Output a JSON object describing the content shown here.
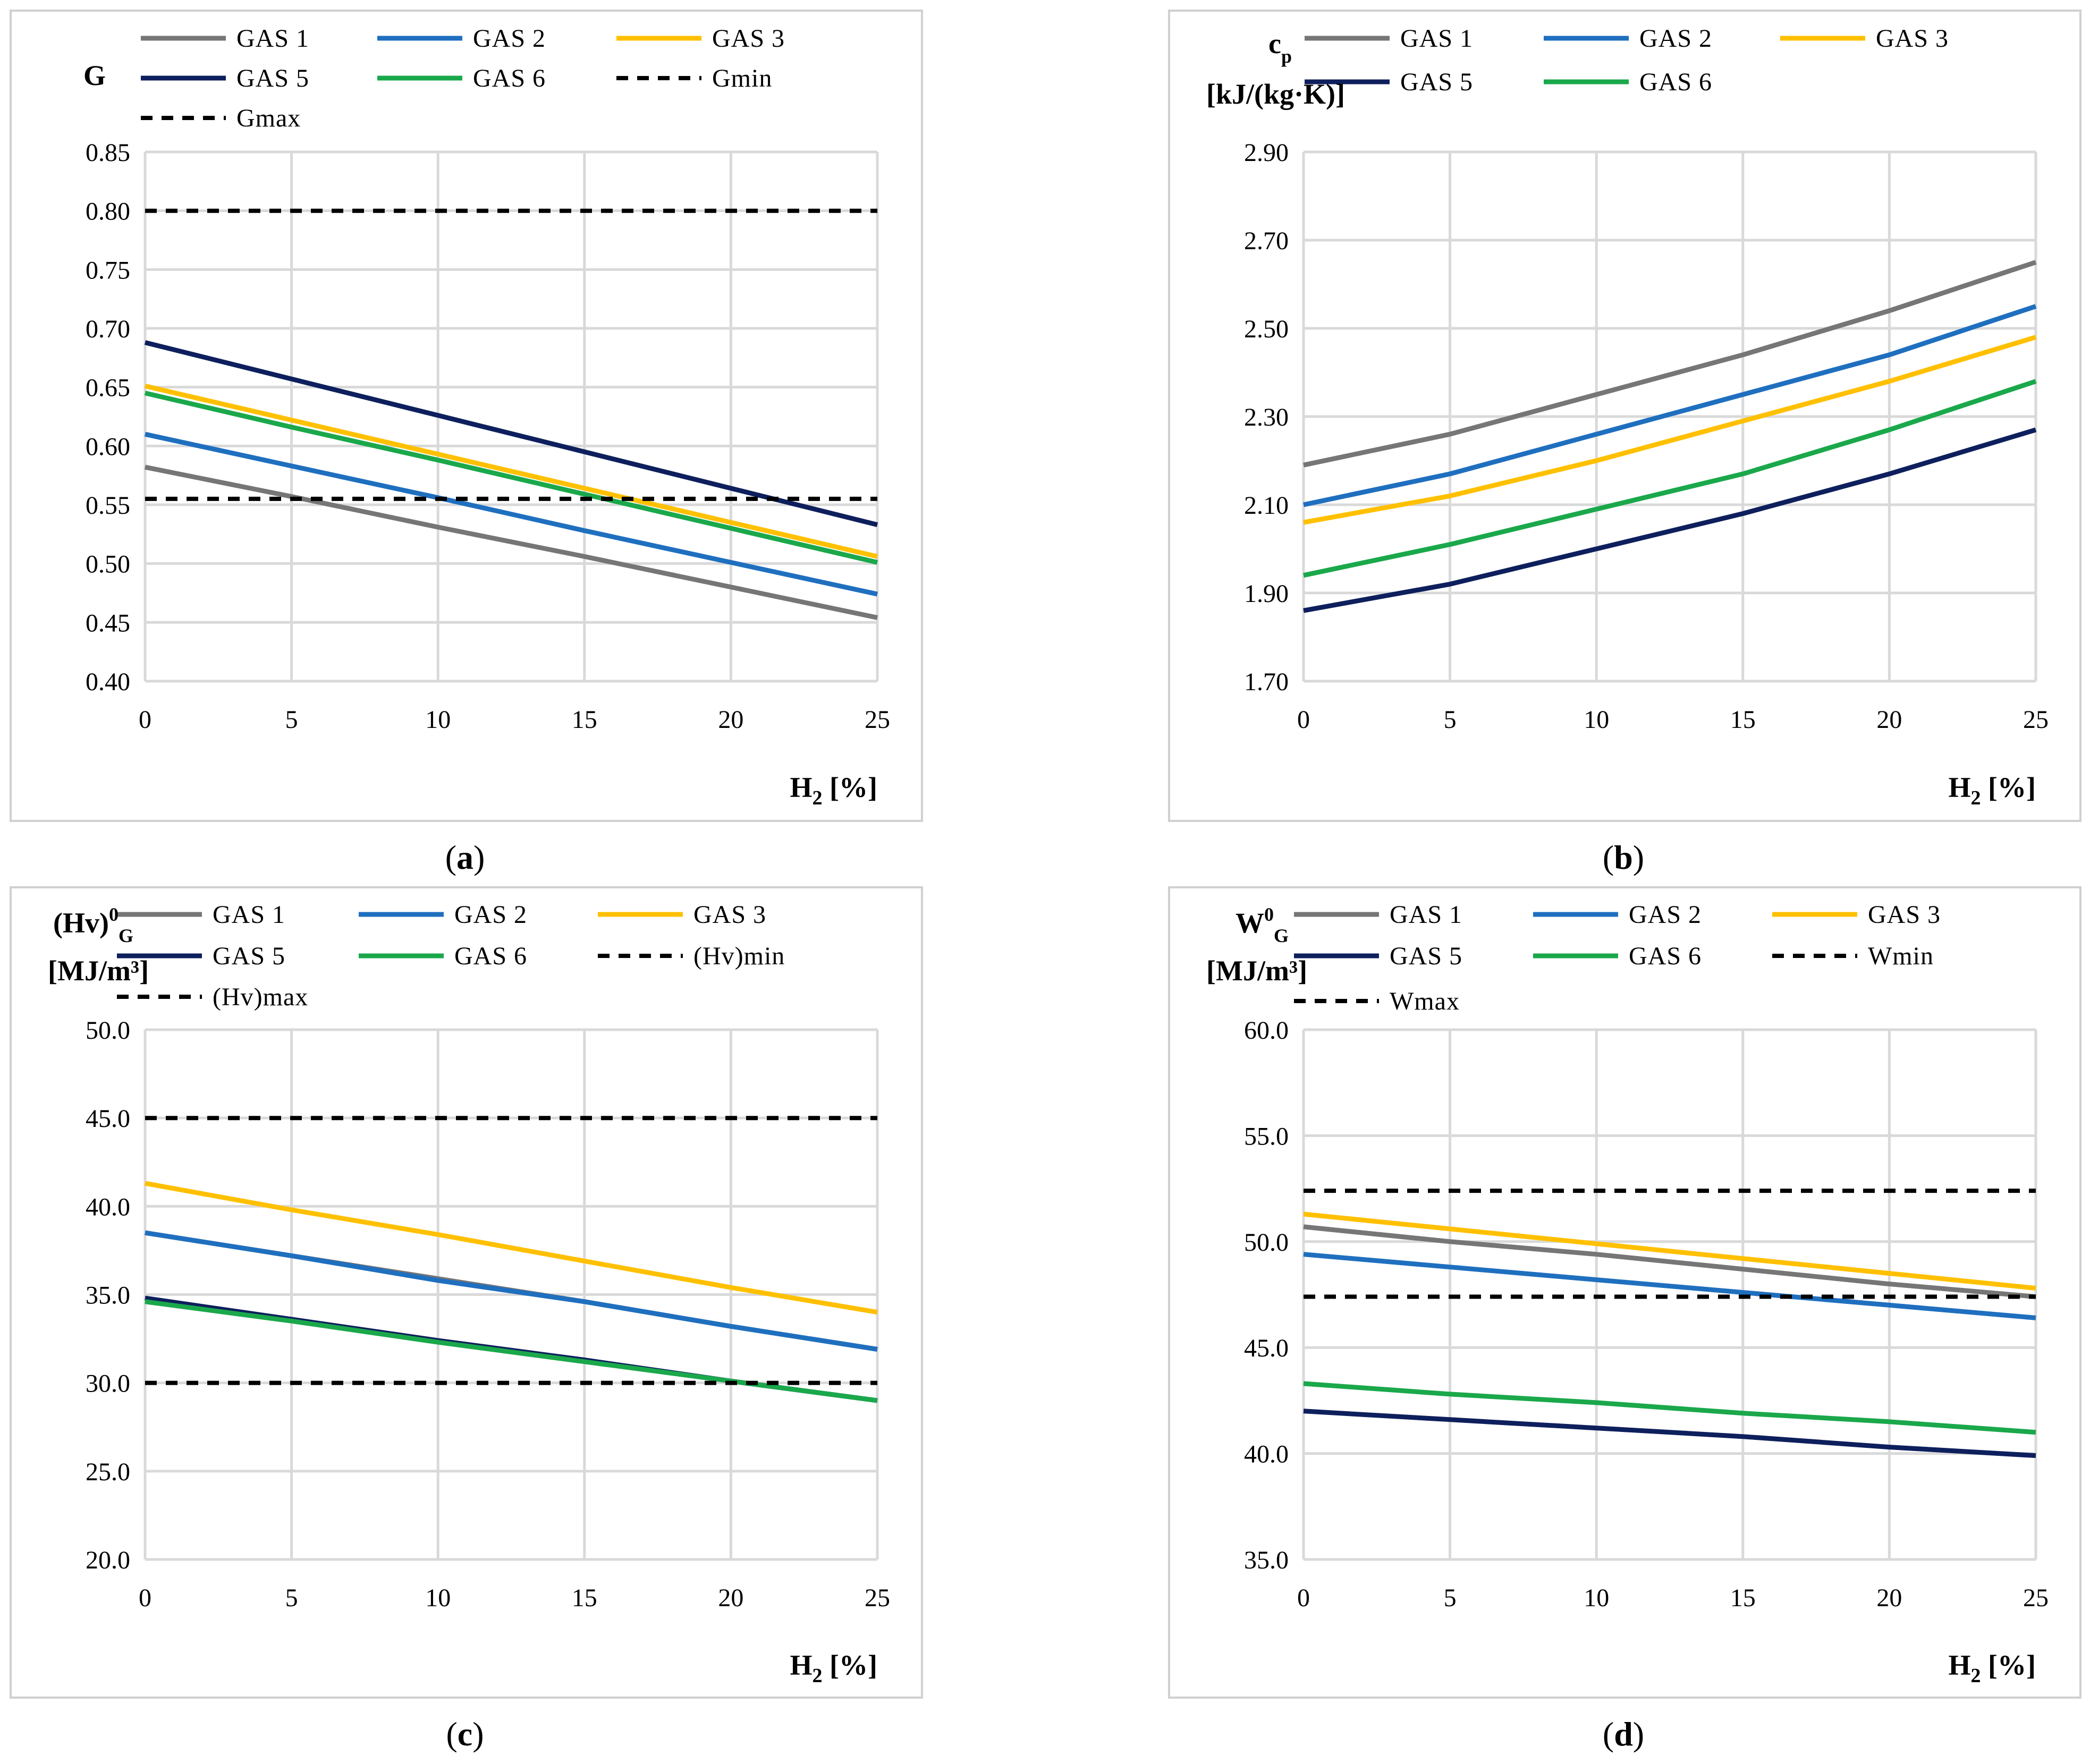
{
  "colors": {
    "GAS 1": "#767676",
    "GAS 2": "#1f6fbf",
    "GAS 3": "#ffc000",
    "GAS 5": "#0d1f5c",
    "GAS 6": "#1aa84b",
    "limit": "#000000"
  },
  "chart_data": [
    {
      "panel": "a",
      "type": "line",
      "ylabel_parts": {
        "main": "G",
        "sup": "",
        "sub": ""
      },
      "ylabel_line2": "",
      "xlabel": {
        "main": "H",
        "sub": "2",
        "rest": " [%]"
      },
      "x": [
        0,
        5,
        10,
        15,
        20,
        25
      ],
      "ylim": [
        0.4,
        0.85
      ],
      "yticks": [
        "0.40",
        "0.45",
        "0.50",
        "0.55",
        "0.60",
        "0.65",
        "0.70",
        "0.75",
        "0.80",
        "0.85"
      ],
      "series": [
        {
          "name": "GAS 1",
          "values": [
            0.582,
            0.557,
            0.531,
            0.506,
            0.48,
            0.454
          ]
        },
        {
          "name": "GAS 2",
          "values": [
            0.61,
            0.583,
            0.556,
            0.528,
            0.501,
            0.474
          ]
        },
        {
          "name": "GAS 3",
          "values": [
            0.651,
            0.622,
            0.593,
            0.564,
            0.535,
            0.506
          ]
        },
        {
          "name": "GAS 5",
          "values": [
            0.688,
            0.657,
            0.626,
            0.595,
            0.564,
            0.533
          ]
        },
        {
          "name": "GAS 6",
          "values": [
            0.645,
            0.616,
            0.588,
            0.559,
            0.53,
            0.501
          ]
        },
        {
          "name": "Gmin",
          "values": [
            0.555,
            0.555,
            0.555,
            0.555,
            0.555,
            0.555
          ],
          "dashed": true
        },
        {
          "name": "Gmax",
          "values": [
            0.8,
            0.8,
            0.8,
            0.8,
            0.8,
            0.8
          ],
          "dashed": true
        }
      ],
      "panel_label": {
        "open": "(",
        "letter": "a",
        "close": ")"
      }
    },
    {
      "panel": "b",
      "type": "line",
      "ylabel_parts": {
        "main": "c",
        "sup": "",
        "sub": "p"
      },
      "ylabel_line2": "[kJ/(kg·K)]",
      "xlabel": {
        "main": "H",
        "sub": "2",
        "rest": " [%]"
      },
      "x": [
        0,
        5,
        10,
        15,
        20,
        25
      ],
      "ylim": [
        1.7,
        2.9
      ],
      "yticks": [
        "1.70",
        "1.90",
        "2.10",
        "2.30",
        "2.50",
        "2.70",
        "2.90"
      ],
      "series": [
        {
          "name": "GAS 1",
          "values": [
            2.19,
            2.26,
            2.35,
            2.44,
            2.54,
            2.65
          ]
        },
        {
          "name": "GAS 2",
          "values": [
            2.1,
            2.17,
            2.26,
            2.35,
            2.44,
            2.55
          ]
        },
        {
          "name": "GAS 3",
          "values": [
            2.06,
            2.12,
            2.2,
            2.29,
            2.38,
            2.48
          ]
        },
        {
          "name": "GAS 5",
          "values": [
            1.86,
            1.92,
            2.0,
            2.08,
            2.17,
            2.27
          ]
        },
        {
          "name": "GAS 6",
          "values": [
            1.94,
            2.01,
            2.09,
            2.17,
            2.27,
            2.38
          ]
        }
      ],
      "panel_label": {
        "open": "(",
        "letter": "b",
        "close": ")"
      }
    },
    {
      "panel": "c",
      "type": "line",
      "ylabel_parts": {
        "main": "(Hv)",
        "sup": "0",
        "sub": "G"
      },
      "ylabel_line2": "[MJ/m³]",
      "xlabel": {
        "main": "H",
        "sub": "2",
        "rest": " [%]"
      },
      "x": [
        0,
        5,
        10,
        15,
        20,
        25
      ],
      "ylim": [
        20.0,
        50.0
      ],
      "yticks": [
        "20.0",
        "25.0",
        "30.0",
        "35.0",
        "40.0",
        "45.0",
        "50.0"
      ],
      "series": [
        {
          "name": "GAS 1",
          "values": [
            38.5,
            37.2,
            35.9,
            34.6,
            33.2,
            31.9
          ]
        },
        {
          "name": "GAS 2",
          "values": [
            38.5,
            37.2,
            35.8,
            34.6,
            33.2,
            31.9
          ]
        },
        {
          "name": "GAS 3",
          "values": [
            41.3,
            39.8,
            38.4,
            36.9,
            35.4,
            34.0
          ]
        },
        {
          "name": "GAS 5",
          "values": [
            34.8,
            33.6,
            32.4,
            31.3,
            30.1,
            29.0
          ]
        },
        {
          "name": "GAS 6",
          "values": [
            34.6,
            33.5,
            32.3,
            31.2,
            30.1,
            29.0
          ]
        },
        {
          "name": "(Hv)min",
          "values": [
            30.0,
            30.0,
            30.0,
            30.0,
            30.0,
            30.0
          ],
          "dashed": true
        },
        {
          "name": "(Hv)max",
          "values": [
            45.0,
            45.0,
            45.0,
            45.0,
            45.0,
            45.0
          ],
          "dashed": true
        }
      ],
      "panel_label": {
        "open": "(",
        "letter": "c",
        "close": ")"
      }
    },
    {
      "panel": "d",
      "type": "line",
      "ylabel_parts": {
        "main": "W",
        "sup": "0",
        "sub": "G"
      },
      "ylabel_line2": "[MJ/m³]",
      "xlabel": {
        "main": "H",
        "sub": "2",
        "rest": " [%]"
      },
      "x": [
        0,
        5,
        10,
        15,
        20,
        25
      ],
      "ylim": [
        35.0,
        60.0
      ],
      "yticks": [
        "35.0",
        "40.0",
        "45.0",
        "50.0",
        "55.0",
        "60.0"
      ],
      "series": [
        {
          "name": "GAS 1",
          "values": [
            50.7,
            50.0,
            49.4,
            48.7,
            48.0,
            47.4
          ]
        },
        {
          "name": "GAS 2",
          "values": [
            49.4,
            48.8,
            48.2,
            47.6,
            47.0,
            46.4
          ]
        },
        {
          "name": "GAS 3",
          "values": [
            51.3,
            50.6,
            49.9,
            49.2,
            48.5,
            47.8
          ]
        },
        {
          "name": "GAS 5",
          "values": [
            42.0,
            41.6,
            41.2,
            40.8,
            40.3,
            39.9
          ]
        },
        {
          "name": "GAS 6",
          "values": [
            43.3,
            42.8,
            42.4,
            41.9,
            41.5,
            41.0
          ]
        },
        {
          "name": "Wmin",
          "values": [
            47.4,
            47.4,
            47.4,
            47.4,
            47.4,
            47.4
          ],
          "dashed": true
        },
        {
          "name": "Wmax",
          "values": [
            52.4,
            52.4,
            52.4,
            52.4,
            52.4,
            52.4
          ],
          "dashed": true
        }
      ],
      "panel_label": {
        "open": "(",
        "letter": "d",
        "close": ")"
      }
    }
  ]
}
